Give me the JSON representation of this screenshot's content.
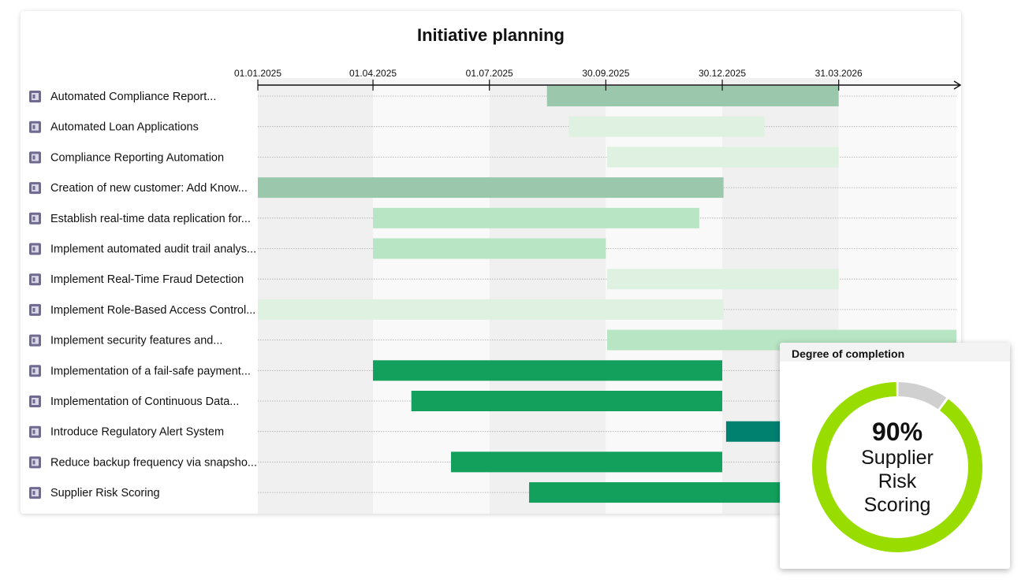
{
  "chart_data": {
    "type": "gantt",
    "title": "Initiative planning",
    "axis": {
      "start": "2025-01-01",
      "end": "2026-07-01",
      "ticks": [
        "01.01.2025",
        "01.04.2025",
        "01.07.2025",
        "30.09.2025",
        "30.12.2025",
        "31.03.2026"
      ]
    },
    "colors": {
      "dark": "#9bc8ad",
      "light": "#dff2e1",
      "mid": "#b8e5c3",
      "green": "#13a05c",
      "teal": "#008170",
      "band_a": "#f0f0f0",
      "band_b": "#f9f9f9"
    },
    "tasks": [
      {
        "name": "Automated Compliance Report...",
        "start": "2025-08-15",
        "end": "2026-03-31",
        "color": "dark"
      },
      {
        "name": "Automated Loan Applications",
        "start": "2025-09-01",
        "end": "2026-02-01",
        "color": "light"
      },
      {
        "name": "Compliance Reporting Automation",
        "start": "2025-10-01",
        "end": "2026-03-31",
        "color": "light"
      },
      {
        "name": "Creation of new customer: Add Know...",
        "start": "2025-01-01",
        "end": "2025-12-31",
        "color": "dark"
      },
      {
        "name": "Establish real-time data replication for...",
        "start": "2025-04-01",
        "end": "2025-12-12",
        "color": "mid"
      },
      {
        "name": "Implement automated audit trail analys...",
        "start": "2025-04-01",
        "end": "2025-09-30",
        "color": "mid"
      },
      {
        "name": "Implement Real-Time Fraud Detection",
        "start": "2025-10-01",
        "end": "2026-03-31",
        "color": "light"
      },
      {
        "name": "Implement Role-Based Access Control...",
        "start": "2025-01-01",
        "end": "2025-12-31",
        "color": "light"
      },
      {
        "name": "Implement security features and...",
        "start": "2025-10-01",
        "end": "2026-07-01",
        "color": "mid"
      },
      {
        "name": "Implementation of a fail-safe payment...",
        "start": "2025-04-01",
        "end": "2025-12-30",
        "color": "green"
      },
      {
        "name": "Implementation of Continuous Data...",
        "start": "2025-05-01",
        "end": "2025-12-30",
        "color": "green"
      },
      {
        "name": "Introduce Regulatory Alert System",
        "start": "2026-01-02",
        "end": "2026-03-31",
        "color": "teal"
      },
      {
        "name": "Reduce backup frequency via snapsho...",
        "start": "2025-06-01",
        "end": "2025-12-30",
        "color": "green"
      },
      {
        "name": "Supplier Risk Scoring",
        "start": "2025-08-01",
        "end": "2026-03-31",
        "color": "green"
      }
    ]
  },
  "popup": {
    "title": "Degree of completion",
    "percent_label": "90%",
    "percent": 0.9,
    "name": "Supplier Risk Scoring",
    "ring_color": "#99dd00",
    "rest_color": "#d0d0d0"
  }
}
